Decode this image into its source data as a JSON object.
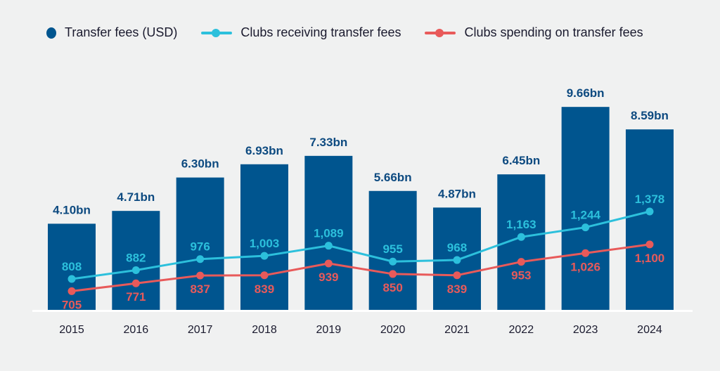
{
  "chart_data": {
    "type": "bar",
    "title": "",
    "xlabel": "",
    "ylabel": "",
    "categories": [
      "2015",
      "2016",
      "2017",
      "2018",
      "2019",
      "2020",
      "2021",
      "2022",
      "2023",
      "2024"
    ],
    "series": [
      {
        "name": "Transfer fees (USD)",
        "type": "bar",
        "color": "#00558f",
        "label_color": "#0d4a80",
        "values": [
          4.1,
          4.71,
          6.3,
          6.93,
          7.33,
          5.66,
          4.87,
          6.45,
          9.66,
          8.59
        ],
        "labels": [
          "4.10bn",
          "4.71bn",
          "6.30bn",
          "6.93bn",
          "7.33bn",
          "5.66bn",
          "4.87bn",
          "6.45bn",
          "9.66bn",
          "8.59bn"
        ]
      },
      {
        "name": "Clubs receiving transfer fees",
        "type": "line",
        "color": "#2cc0dc",
        "values": [
          808,
          882,
          976,
          1003,
          1089,
          955,
          968,
          1163,
          1244,
          1378
        ],
        "labels": [
          "808",
          "882",
          "976",
          "1,003",
          "1,089",
          "955",
          "968",
          "1,163",
          "1,244",
          "1,378"
        ]
      },
      {
        "name": "Clubs spending on transfer fees",
        "type": "line",
        "color": "#e85a5a",
        "values": [
          705,
          771,
          837,
          839,
          939,
          850,
          839,
          953,
          1026,
          1100
        ],
        "labels": [
          "705",
          "771",
          "837",
          "839",
          "939",
          "850",
          "839",
          "953",
          "1,026",
          "1,100"
        ]
      }
    ],
    "ylim_bars": [
      0,
      10
    ],
    "legend": "top-left",
    "grid": false
  }
}
